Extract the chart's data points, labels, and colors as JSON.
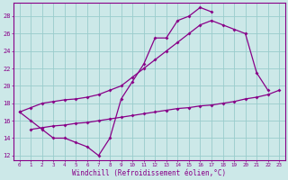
{
  "bg_color": "#cce8e8",
  "line_color": "#880088",
  "grid_color": "#99cccc",
  "xlabel": "Windchill (Refroidissement éolien,°C)",
  "ylabel_ticks": [
    12,
    14,
    16,
    18,
    20,
    22,
    24,
    26,
    28
  ],
  "xlim": [
    -0.5,
    23.5
  ],
  "ylim": [
    11.5,
    29.5
  ],
  "xticks": [
    0,
    1,
    2,
    3,
    4,
    5,
    6,
    7,
    8,
    9,
    10,
    11,
    12,
    13,
    14,
    15,
    16,
    17,
    18,
    19,
    20,
    21,
    22,
    23
  ],
  "line1_x": [
    0,
    1,
    2,
    3,
    4,
    5,
    6,
    7,
    8,
    9,
    10,
    11,
    12,
    13,
    14,
    15,
    16,
    17
  ],
  "line1_y": [
    17.0,
    16.0,
    15.0,
    14.0,
    14.0,
    13.5,
    13.0,
    12.0,
    14.0,
    18.5,
    20.5,
    22.5,
    25.5,
    25.5,
    27.5,
    28.0,
    29.0,
    28.5
  ],
  "line2_x": [
    0,
    1,
    2,
    3,
    4,
    5,
    6,
    7,
    8,
    9,
    10,
    11,
    12,
    13,
    14,
    15,
    16,
    17,
    18,
    19,
    20,
    21,
    22
  ],
  "line2_y": [
    17.0,
    17.5,
    18.0,
    18.2,
    18.4,
    18.5,
    18.7,
    19.0,
    19.5,
    20.0,
    21.0,
    22.0,
    23.0,
    24.0,
    25.0,
    26.0,
    27.0,
    27.5,
    27.0,
    26.5,
    26.0,
    21.5,
    19.5
  ],
  "line3_x": [
    1,
    2,
    3,
    4,
    5,
    6,
    7,
    8,
    9,
    10,
    11,
    12,
    13,
    14,
    15,
    16,
    17,
    18,
    19,
    20,
    21,
    22,
    23
  ],
  "line3_y": [
    15.0,
    15.2,
    15.4,
    15.5,
    15.7,
    15.8,
    16.0,
    16.2,
    16.4,
    16.6,
    16.8,
    17.0,
    17.2,
    17.4,
    17.5,
    17.7,
    17.8,
    18.0,
    18.2,
    18.5,
    18.7,
    19.0,
    19.5
  ]
}
